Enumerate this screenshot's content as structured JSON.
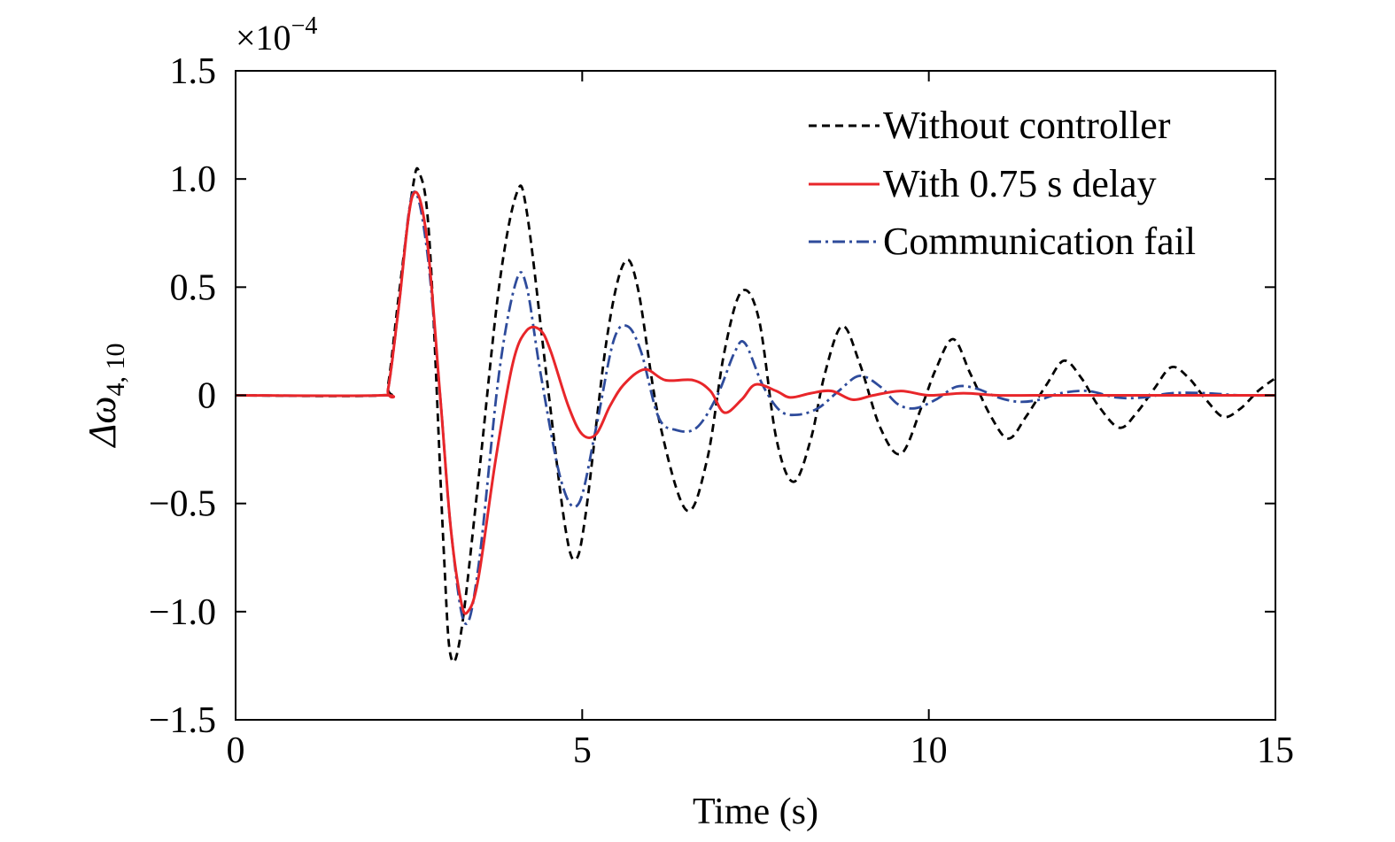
{
  "chart_data": {
    "type": "line",
    "title": "",
    "xlabel": "Time (s)",
    "ylabel_base": "Δω",
    "ylabel_sub": "4, 10",
    "y_multiplier_base": "×10",
    "y_multiplier_exp": "−4",
    "xlim": [
      0,
      15
    ],
    "ylim": [
      -1.5,
      1.5
    ],
    "xticks": [
      0,
      5,
      10,
      15
    ],
    "xtick_labels": [
      "0",
      "5",
      "10",
      "15"
    ],
    "yticks": [
      -1.5,
      -1.0,
      -0.5,
      0,
      0.5,
      1.0,
      1.5
    ],
    "ytick_labels": [
      "−1.5",
      "−1.0",
      "−0.5",
      "0",
      "0.5",
      "1.0",
      "1.5"
    ],
    "grid": false,
    "legend_position": "top-right",
    "series": [
      {
        "name": "Without controller",
        "color": "#000000",
        "style": "dashed",
        "x": [
          0,
          2.1,
          2.2,
          2.35,
          2.55,
          2.65,
          2.8,
          3.0,
          3.1,
          3.25,
          3.5,
          3.8,
          4.05,
          4.2,
          4.5,
          4.75,
          4.9,
          5.05,
          5.35,
          5.6,
          5.8,
          6.1,
          6.5,
          6.8,
          7.05,
          7.3,
          7.55,
          7.8,
          8.05,
          8.3,
          8.5,
          8.75,
          9.0,
          9.3,
          9.6,
          9.9,
          10.1,
          10.35,
          10.6,
          10.9,
          11.15,
          11.4,
          11.7,
          11.95,
          12.2,
          12.45,
          12.75,
          13.0,
          13.25,
          13.5,
          13.75,
          14.0,
          14.25,
          14.5,
          14.75,
          15.0
        ],
        "y": [
          0,
          0,
          0.05,
          0.45,
          0.95,
          1.03,
          0.7,
          -0.7,
          -1.2,
          -1.1,
          -0.4,
          0.5,
          0.93,
          0.85,
          0.05,
          -0.6,
          -0.76,
          -0.55,
          0.25,
          0.61,
          0.5,
          -0.1,
          -0.53,
          -0.3,
          0.2,
          0.48,
          0.35,
          -0.2,
          -0.4,
          -0.2,
          0.1,
          0.32,
          0.15,
          -0.15,
          -0.27,
          -0.05,
          0.12,
          0.26,
          0.1,
          -0.1,
          -0.2,
          -0.1,
          0.05,
          0.16,
          0.08,
          -0.05,
          -0.15,
          -0.08,
          0.03,
          0.13,
          0.08,
          -0.02,
          -0.1,
          -0.06,
          0.02,
          0.08
        ]
      },
      {
        "name": "With 0.75 s delay",
        "color": "#e8262a",
        "style": "solid",
        "x": [
          0,
          2.1,
          2.2,
          2.35,
          2.55,
          2.75,
          2.95,
          3.1,
          3.25,
          3.35,
          3.5,
          3.75,
          4.0,
          4.2,
          4.4,
          4.55,
          4.8,
          5.0,
          5.2,
          5.4,
          5.6,
          5.9,
          6.2,
          6.6,
          6.85,
          7.05,
          7.3,
          7.5,
          7.8,
          8.0,
          8.3,
          8.6,
          8.9,
          9.2,
          9.6,
          10.0,
          10.5,
          11.0,
          11.5,
          12.0,
          13.0,
          14.0,
          15.0
        ],
        "y": [
          0,
          0,
          0.03,
          0.4,
          0.92,
          0.75,
          0.0,
          -0.6,
          -0.95,
          -1.0,
          -0.85,
          -0.3,
          0.15,
          0.3,
          0.3,
          0.2,
          -0.05,
          -0.18,
          -0.18,
          -0.05,
          0.05,
          0.12,
          0.07,
          0.07,
          0.02,
          -0.08,
          -0.02,
          0.05,
          0.02,
          -0.01,
          0.01,
          0.02,
          -0.02,
          0.0,
          0.02,
          0.0,
          0.01,
          0.0,
          0.0,
          0.0,
          0.0,
          0.0,
          0.0
        ]
      },
      {
        "name": "Communication fail",
        "color": "#2e4b9b",
        "style": "dashdot",
        "x": [
          0,
          2.1,
          2.2,
          2.35,
          2.55,
          2.75,
          2.95,
          3.1,
          3.3,
          3.5,
          3.8,
          4.05,
          4.2,
          4.4,
          4.7,
          4.95,
          5.2,
          5.45,
          5.65,
          5.85,
          6.1,
          6.35,
          6.65,
          6.95,
          7.2,
          7.35,
          7.6,
          7.85,
          8.1,
          8.4,
          8.7,
          9.0,
          9.3,
          9.55,
          9.8,
          10.1,
          10.4,
          10.7,
          11.0,
          11.3,
          11.6,
          11.9,
          12.3,
          12.7,
          13.1,
          13.5,
          14.0,
          14.5,
          15.0
        ],
        "y": [
          0,
          0,
          0.03,
          0.4,
          0.93,
          0.7,
          0.0,
          -0.6,
          -1.05,
          -0.8,
          0.1,
          0.53,
          0.5,
          0.1,
          -0.4,
          -0.5,
          -0.15,
          0.25,
          0.32,
          0.2,
          -0.1,
          -0.16,
          -0.15,
          0.0,
          0.2,
          0.24,
          0.05,
          -0.07,
          -0.09,
          -0.06,
          0.02,
          0.09,
          0.04,
          -0.04,
          -0.06,
          -0.02,
          0.04,
          0.03,
          -0.01,
          -0.03,
          -0.02,
          0.01,
          0.02,
          -0.01,
          -0.01,
          0.01,
          0.01,
          0.0,
          0.0
        ]
      }
    ]
  }
}
